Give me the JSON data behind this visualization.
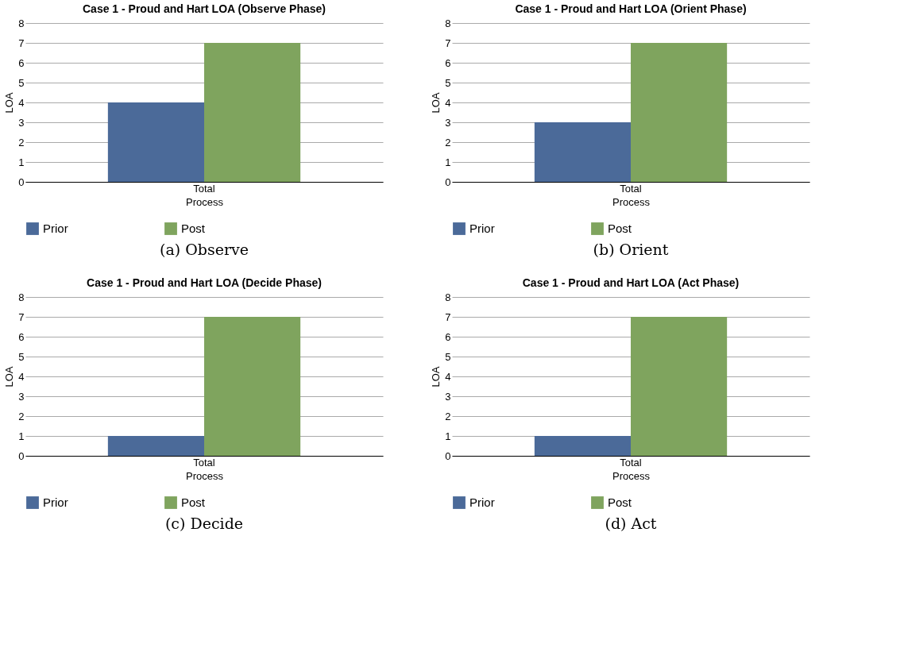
{
  "chart_data": [
    {
      "type": "bar",
      "title": "Case 1 - Proud and Hart LOA (Observe Phase)",
      "xlabel": "Process",
      "ylabel": "LOA",
      "categories": [
        "Total"
      ],
      "series": [
        {
          "name": "Prior",
          "color": "#4b6a99",
          "values": [
            4
          ]
        },
        {
          "name": "Post",
          "color": "#7fa45e",
          "values": [
            7
          ]
        }
      ],
      "ylim": [
        0,
        8
      ],
      "yticks": [
        0,
        1,
        2,
        3,
        4,
        5,
        6,
        7,
        8
      ],
      "grid": "y",
      "legend": "bottom",
      "annotations": [
        "(a) Observe"
      ]
    },
    {
      "type": "bar",
      "title": "Case 1 - Proud and Hart LOA (Orient Phase)",
      "xlabel": "Process",
      "ylabel": "LOA",
      "categories": [
        "Total"
      ],
      "series": [
        {
          "name": "Prior",
          "color": "#4b6a99",
          "values": [
            3
          ]
        },
        {
          "name": "Post",
          "color": "#7fa45e",
          "values": [
            7
          ]
        }
      ],
      "ylim": [
        0,
        8
      ],
      "yticks": [
        0,
        1,
        2,
        3,
        4,
        5,
        6,
        7,
        8
      ],
      "grid": "y",
      "legend": "bottom",
      "annotations": [
        "(b) Orient"
      ]
    },
    {
      "type": "bar",
      "title": "Case 1 - Proud and Hart LOA (Decide Phase)",
      "xlabel": "Process",
      "ylabel": "LOA",
      "categories": [
        "Total"
      ],
      "series": [
        {
          "name": "Prior",
          "color": "#4b6a99",
          "values": [
            1
          ]
        },
        {
          "name": "Post",
          "color": "#7fa45e",
          "values": [
            7
          ]
        }
      ],
      "ylim": [
        0,
        8
      ],
      "yticks": [
        0,
        1,
        2,
        3,
        4,
        5,
        6,
        7,
        8
      ],
      "grid": "y",
      "legend": "bottom",
      "annotations": [
        "(c) Decide"
      ]
    },
    {
      "type": "bar",
      "title": "Case 1 - Proud and Hart LOA (Act Phase)",
      "xlabel": "Process",
      "ylabel": "LOA",
      "categories": [
        "Total"
      ],
      "series": [
        {
          "name": "Prior",
          "color": "#4b6a99",
          "values": [
            1
          ]
        },
        {
          "name": "Post",
          "color": "#7fa45e",
          "values": [
            7
          ]
        }
      ],
      "ylim": [
        0,
        8
      ],
      "yticks": [
        0,
        1,
        2,
        3,
        4,
        5,
        6,
        7,
        8
      ],
      "grid": "y",
      "legend": "bottom",
      "annotations": [
        "(d) Act"
      ]
    }
  ]
}
